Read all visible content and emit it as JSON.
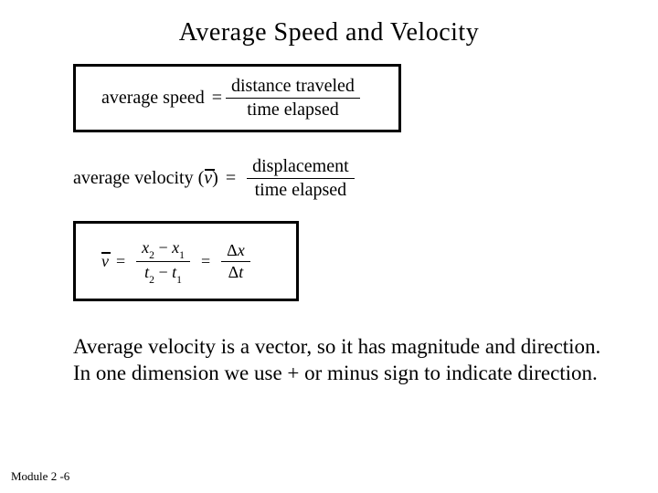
{
  "title": "Average Speed and  Velocity",
  "formula1": {
    "lhs": "average speed",
    "eq": "=",
    "numerator": "distance traveled",
    "denominator": "time elapsed"
  },
  "formula2": {
    "lhs_text": "average velocity (",
    "lhs_symbol": "v",
    "lhs_close": ")",
    "eq": "=",
    "numerator": "displacement",
    "denominator": "time elapsed"
  },
  "formula3": {
    "vbar": "v",
    "eq1": "=",
    "x2": "x",
    "x2sub": "2",
    "minus1": " − ",
    "x1": "x",
    "x1sub": "1",
    "t2": "t",
    "t2sub": "2",
    "minus2": " − ",
    "t1": "t",
    "t1sub": "1",
    "eq2": "=",
    "dx_delta": "Δ",
    "dx_x": "x",
    "dt_delta": "Δ",
    "dt_t": "t"
  },
  "body": "Average velocity is a vector, so it has magnitude and direction.  In one dimension we use + or minus sign to indicate direction.",
  "footer": "Module 2 -6",
  "colors": {
    "text": "#000000",
    "background": "#ffffff",
    "border": "#000000"
  }
}
